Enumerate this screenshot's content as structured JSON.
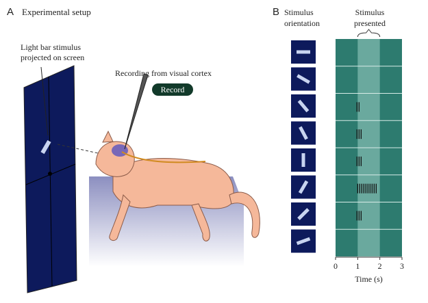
{
  "panel_a": {
    "letter": "A",
    "title": "Experimental setup",
    "stimulus_label": "Light bar stimulus projected on screen",
    "recording_label": "Recording from visual cortex",
    "record_button": "Record"
  },
  "panel_b": {
    "letter": "B",
    "orientation_header": "Stimulus orientation",
    "presented_header": "Stimulus presented",
    "raster": {
      "xlim": [
        0,
        3
      ],
      "xticks": [
        0,
        1,
        2,
        3
      ],
      "xlabel": "Time (s)"
    }
  }
}
